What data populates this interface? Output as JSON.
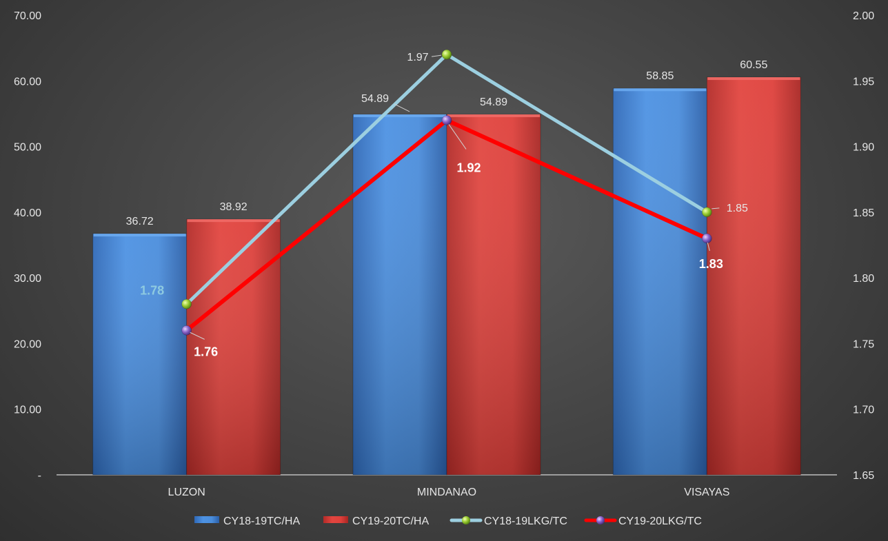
{
  "chart_data": {
    "type": "bar",
    "categories": [
      "LUZON",
      "MINDANAO",
      "VISAYAS"
    ],
    "series": [
      {
        "name": "CY18-19TC/HA",
        "kind": "bar",
        "axis": "left",
        "color": "#4a8fe0",
        "values": [
          36.72,
          54.89,
          58.85
        ]
      },
      {
        "name": "CY19-20TC/HA",
        "kind": "bar",
        "axis": "left",
        "color": "#e0433f",
        "values": [
          38.92,
          54.89,
          60.55
        ]
      },
      {
        "name": "CY18-19LKG/TC",
        "kind": "line",
        "axis": "right",
        "color": "#9ccfe0",
        "marker": "#9acd32",
        "values": [
          1.78,
          1.97,
          1.85
        ]
      },
      {
        "name": "CY19-20LKG/TC",
        "kind": "line",
        "axis": "right",
        "color": "#ff0000",
        "marker": "#8a63c9",
        "values": [
          1.76,
          1.92,
          1.83
        ]
      }
    ],
    "left_axis": {
      "ylim": [
        0,
        70
      ],
      "tick_labels": [
        "-",
        "10.00",
        "20.00",
        "30.00",
        "40.00",
        "50.00",
        "60.00",
        "70.00"
      ]
    },
    "right_axis": {
      "ylim": [
        1.65,
        2.0
      ],
      "tick_labels": [
        "1.65",
        "1.70",
        "1.75",
        "1.80",
        "1.85",
        "1.90",
        "1.95",
        "2.00"
      ]
    },
    "data_labels": {
      "CY18-19TC/HA": [
        "36.72",
        "54.89",
        "58.85"
      ],
      "CY19-20TC/HA": [
        "38.92",
        "54.89",
        "60.55"
      ],
      "CY18-19LKG/TC": [
        "1.78",
        "1.97",
        "1.85"
      ],
      "CY19-20LKG/TC": [
        "1.76",
        "1.92",
        "1.83"
      ]
    },
    "grid": false,
    "legend_position": "bottom",
    "title": "",
    "xlabel": "",
    "ylabel": ""
  }
}
